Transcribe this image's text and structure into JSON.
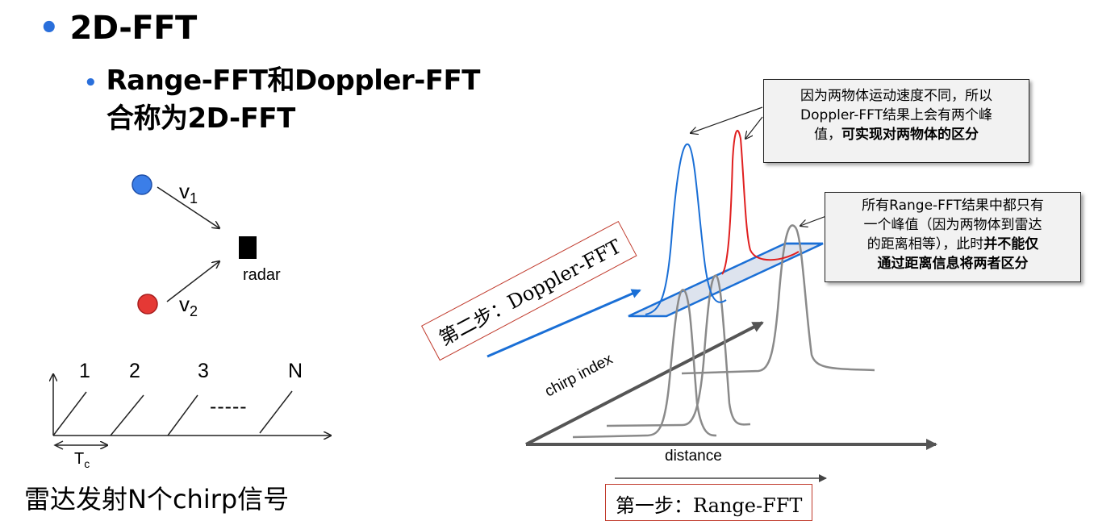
{
  "title": {
    "bullet": "•",
    "text": "2D-FFT"
  },
  "subtitle": {
    "bullet": "•",
    "line1": "Range-FFT和Doppler-FFT",
    "line2": "合称为2D-FFT"
  },
  "objects": {
    "v1": "v",
    "v1_sub": "1",
    "v2": "v",
    "v2_sub": "2",
    "radar": "radar"
  },
  "chirps": {
    "labels": [
      "1",
      "2",
      "3",
      "N"
    ],
    "dashes": "-----",
    "tc": "T",
    "tc_sub": "c",
    "caption": "雷达发射N个chirp信号"
  },
  "note_doppler": {
    "line1": "因为两物体运动速度不同，所以",
    "line2": "Doppler-FFT结果上会有两个峰",
    "line3a": "值，",
    "line3b": "可实现对两物体的区分"
  },
  "note_range": {
    "line1": "所有Range-FFT结果中都只有",
    "line2": "一个峰值（因为两物体到雷达",
    "line3a": "的距离相等），此时",
    "line3b": "并不能仅",
    "line4": "通过距离信息将两者区分"
  },
  "axes": {
    "chirp_index": "chirp index",
    "distance": "distance"
  },
  "steps": {
    "step2": "第二步：Doppler-FFT",
    "step1": "第一步：Range-FFT"
  },
  "colors": {
    "blue_dot": "#3b7ee8",
    "red_dot": "#e53935",
    "doppler_blue": "#1a6fd6",
    "doppler_red": "#e02020",
    "peak_gray": "#8a8a8a",
    "bullet_blue": "#2a6fdb",
    "step_border": "#c0392b"
  }
}
